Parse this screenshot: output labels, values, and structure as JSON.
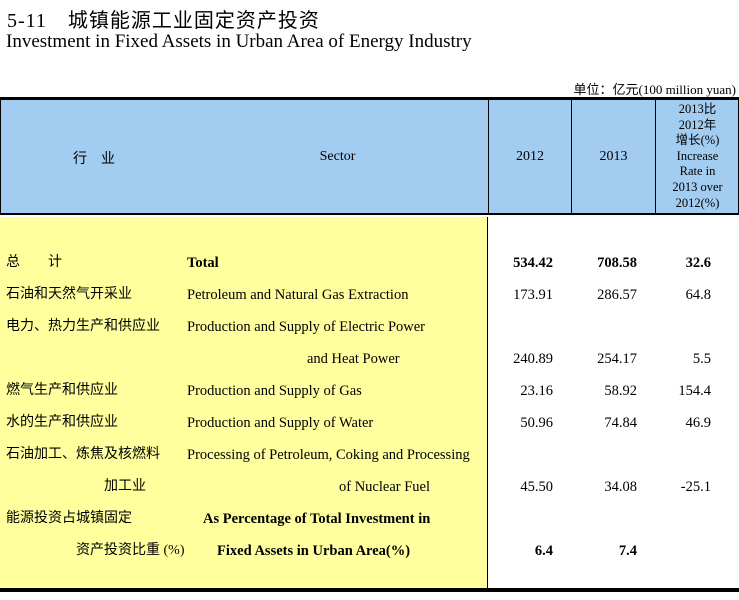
{
  "page": {
    "title_cn": "5-11　城镇能源工业固定资产投资",
    "title_en": "Investment in Fixed Assets in Urban Area of Energy Industry",
    "unit_note": "单位：亿元(100 million yuan)"
  },
  "colors": {
    "header_bg": "#A3CCF1",
    "stub_bg": "#FFFF9E",
    "border": "#000000"
  },
  "table": {
    "header": {
      "col_industry_cn": "行　业",
      "col_sector": "Sector",
      "col_2012": "2012",
      "col_2013": "2013",
      "col_rate_lines": [
        "2013比",
        "2012年",
        "增长(%)",
        "Increase",
        "Rate in",
        "2013 over",
        "2012(%)"
      ]
    },
    "rows": [
      {
        "cn": "总　　计",
        "en": "Total",
        "y2012": "534.42",
        "y2013": "708.58",
        "rate": "32.6"
      },
      {
        "cn": "石油和天然气开采业",
        "en": "Petroleum and Natural Gas Extraction",
        "y2012": "173.91",
        "y2013": "286.57",
        "rate": "64.8"
      },
      {
        "cn": "电力、热力生产和供应业",
        "en": "Production and Supply of Electric Power",
        "y2012": "",
        "y2013": "",
        "rate": ""
      },
      {
        "cn": "",
        "en": "and Heat Power",
        "y2012": "240.89",
        "y2013": "254.17",
        "rate": "5.5"
      },
      {
        "cn": "燃气生产和供应业",
        "en": "Production and Supply of Gas",
        "y2012": "23.16",
        "y2013": "58.92",
        "rate": "154.4"
      },
      {
        "cn": "水的生产和供应业",
        "en": "Production and Supply of Water",
        "y2012": "50.96",
        "y2013": "74.84",
        "rate": "46.9"
      },
      {
        "cn": "石油加工、炼焦及核燃料",
        "en": "Processing of Petroleum, Coking and Processing",
        "y2012": "",
        "y2013": "",
        "rate": ""
      },
      {
        "cn": "加工业",
        "en": "of Nuclear Fuel",
        "y2012": "45.50",
        "y2013": "34.08",
        "rate": "-25.1"
      },
      {
        "cn": "能源投资占城镇固定",
        "en": "As Percentage of Total Investment in",
        "y2012": "",
        "y2013": "",
        "rate": ""
      },
      {
        "cn": "资产投资比重 (%)",
        "en": "Fixed Assets in Urban Area(%)",
        "y2012": "6.4",
        "y2013": "7.4",
        "rate": ""
      }
    ]
  }
}
